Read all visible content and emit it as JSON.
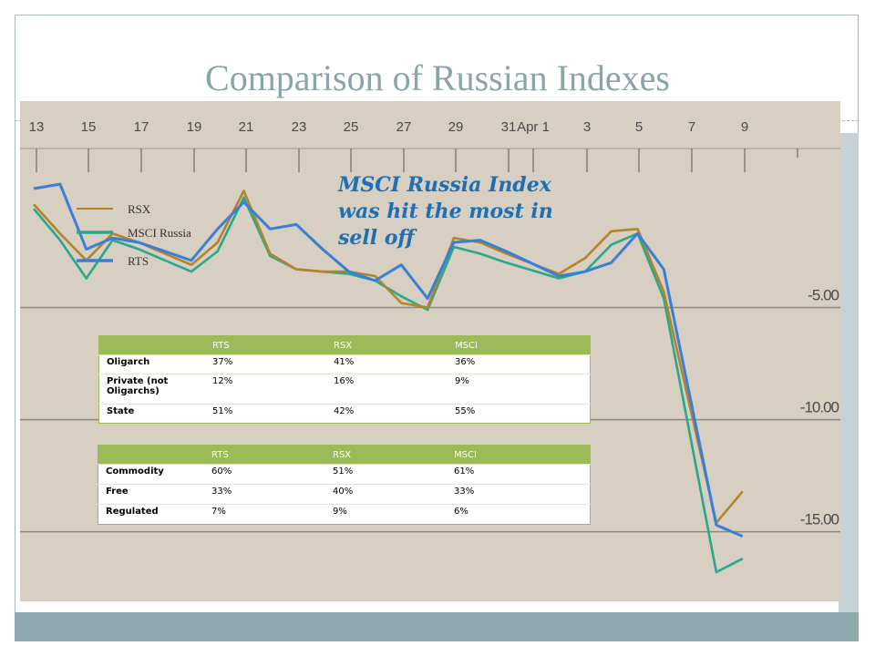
{
  "slide": {
    "title": "Comparison of Russian Indexes"
  },
  "annotation": {
    "lines": [
      "MSCI Russia Index",
      "was hit the most in",
      "sell off"
    ]
  },
  "tables": {
    "ownership": {
      "headers": [
        "",
        "RTS",
        "RSX",
        "MSCI"
      ],
      "rows": [
        {
          "label": "Oligarch",
          "label2": "",
          "rts": "37%",
          "rsx": "41%",
          "msci": "36%"
        },
        {
          "label": "Private (not",
          "label2": "Oligarchs)",
          "rts": "12%",
          "rsx": "16%",
          "msci": "9%"
        },
        {
          "label": "State",
          "label2": "",
          "rts": "51%",
          "rsx": "42%",
          "msci": "55%"
        }
      ]
    },
    "sector": {
      "headers": [
        "",
        "RTS",
        "RSX",
        "MSCI"
      ],
      "rows": [
        {
          "label": "Commodity",
          "rts": "60%",
          "rsx": "51%",
          "msci": "61%"
        },
        {
          "label": "Free",
          "rts": "33%",
          "rsx": "40%",
          "msci": "33%"
        },
        {
          "label": "Regulated",
          "rts": "7%",
          "rsx": "9%",
          "msci": "6%"
        }
      ]
    }
  },
  "chart_data": {
    "type": "line",
    "x_ticks": [
      "13",
      "15",
      "17",
      "19",
      "21",
      "23",
      "25",
      "27",
      "29",
      "31",
      "Apr 1",
      "3",
      "5",
      "7",
      "9"
    ],
    "y_ticks": [
      "-5.00",
      "-10.00",
      "-15.00"
    ],
    "y_tick_values": [
      -5,
      -10,
      -15
    ],
    "ylim": [
      -18.1,
      4.2
    ],
    "grid": "horizontal",
    "legend_position": "top-left",
    "colors": {
      "RSX": "#b5832a",
      "MSCI Russia": "#2aa889",
      "RTS": "#3a7fd6",
      "background": "#d6cfc2",
      "grid": "#8b8781"
    },
    "series": [
      {
        "name": "RSX",
        "points": [
          [
            12.9,
            -0.4
          ],
          [
            13.9,
            -1.7
          ],
          [
            14.9,
            -2.9
          ],
          [
            15.9,
            -1.7
          ],
          [
            16.9,
            -2.1
          ],
          [
            17.9,
            -2.6
          ],
          [
            18.9,
            -3.1
          ],
          [
            19.9,
            -2.1
          ],
          [
            20.9,
            0.2
          ],
          [
            21.9,
            -2.6
          ],
          [
            22.9,
            -3.3
          ],
          [
            23.9,
            -3.4
          ],
          [
            24.9,
            -3.4
          ],
          [
            25.9,
            -3.6
          ],
          [
            26.9,
            -4.8
          ],
          [
            27.9,
            -5.0
          ],
          [
            28.9,
            -1.9
          ],
          [
            29.9,
            -2.1
          ],
          [
            30.9,
            -2.6
          ],
          [
            32.9,
            -3.5
          ],
          [
            33.9,
            -2.8
          ],
          [
            34.9,
            -1.6
          ],
          [
            35.9,
            -1.5
          ],
          [
            36.9,
            -4.3
          ],
          [
            38.9,
            -14.6
          ],
          [
            39.9,
            -13.2
          ]
        ]
      },
      {
        "name": "MSCI Russia",
        "points": [
          [
            12.9,
            -0.6
          ],
          [
            13.9,
            -2.0
          ],
          [
            14.9,
            -3.7
          ],
          [
            15.9,
            -2.0
          ],
          [
            16.9,
            -2.4
          ],
          [
            17.9,
            -2.9
          ],
          [
            18.9,
            -3.4
          ],
          [
            19.9,
            -2.5
          ],
          [
            20.9,
            -0.1
          ],
          [
            21.9,
            -2.7
          ],
          [
            22.9,
            -3.3
          ],
          [
            23.9,
            -3.4
          ],
          [
            24.9,
            -3.5
          ],
          [
            25.9,
            -3.8
          ],
          [
            26.9,
            -4.5
          ],
          [
            27.9,
            -5.1
          ],
          [
            28.9,
            -2.3
          ],
          [
            29.9,
            -2.6
          ],
          [
            30.9,
            -3.0
          ],
          [
            32.9,
            -3.7
          ],
          [
            33.9,
            -3.4
          ],
          [
            34.9,
            -2.2
          ],
          [
            35.9,
            -1.7
          ],
          [
            36.9,
            -4.6
          ],
          [
            38.9,
            -16.8
          ],
          [
            39.9,
            -16.2
          ]
        ]
      },
      {
        "name": "RTS",
        "points": [
          [
            12.9,
            0.3
          ],
          [
            13.9,
            0.5
          ],
          [
            14.9,
            -2.4
          ],
          [
            15.9,
            -1.9
          ],
          [
            16.9,
            -2.1
          ],
          [
            17.9,
            -2.5
          ],
          [
            18.9,
            -2.9
          ],
          [
            19.9,
            -1.5
          ],
          [
            20.9,
            -0.3
          ],
          [
            21.9,
            -1.5
          ],
          [
            22.9,
            -1.3
          ],
          [
            23.9,
            -2.4
          ],
          [
            24.9,
            -3.4
          ],
          [
            25.9,
            -3.8
          ],
          [
            26.9,
            -3.1
          ],
          [
            27.9,
            -4.6
          ],
          [
            28.9,
            -2.1
          ],
          [
            29.9,
            -2.0
          ],
          [
            30.9,
            -2.5
          ],
          [
            32.9,
            -3.6
          ],
          [
            33.9,
            -3.4
          ],
          [
            34.9,
            -3.0
          ],
          [
            35.9,
            -1.7
          ],
          [
            36.9,
            -3.3
          ],
          [
            38.9,
            -14.7
          ],
          [
            39.9,
            -15.2
          ]
        ]
      }
    ]
  }
}
